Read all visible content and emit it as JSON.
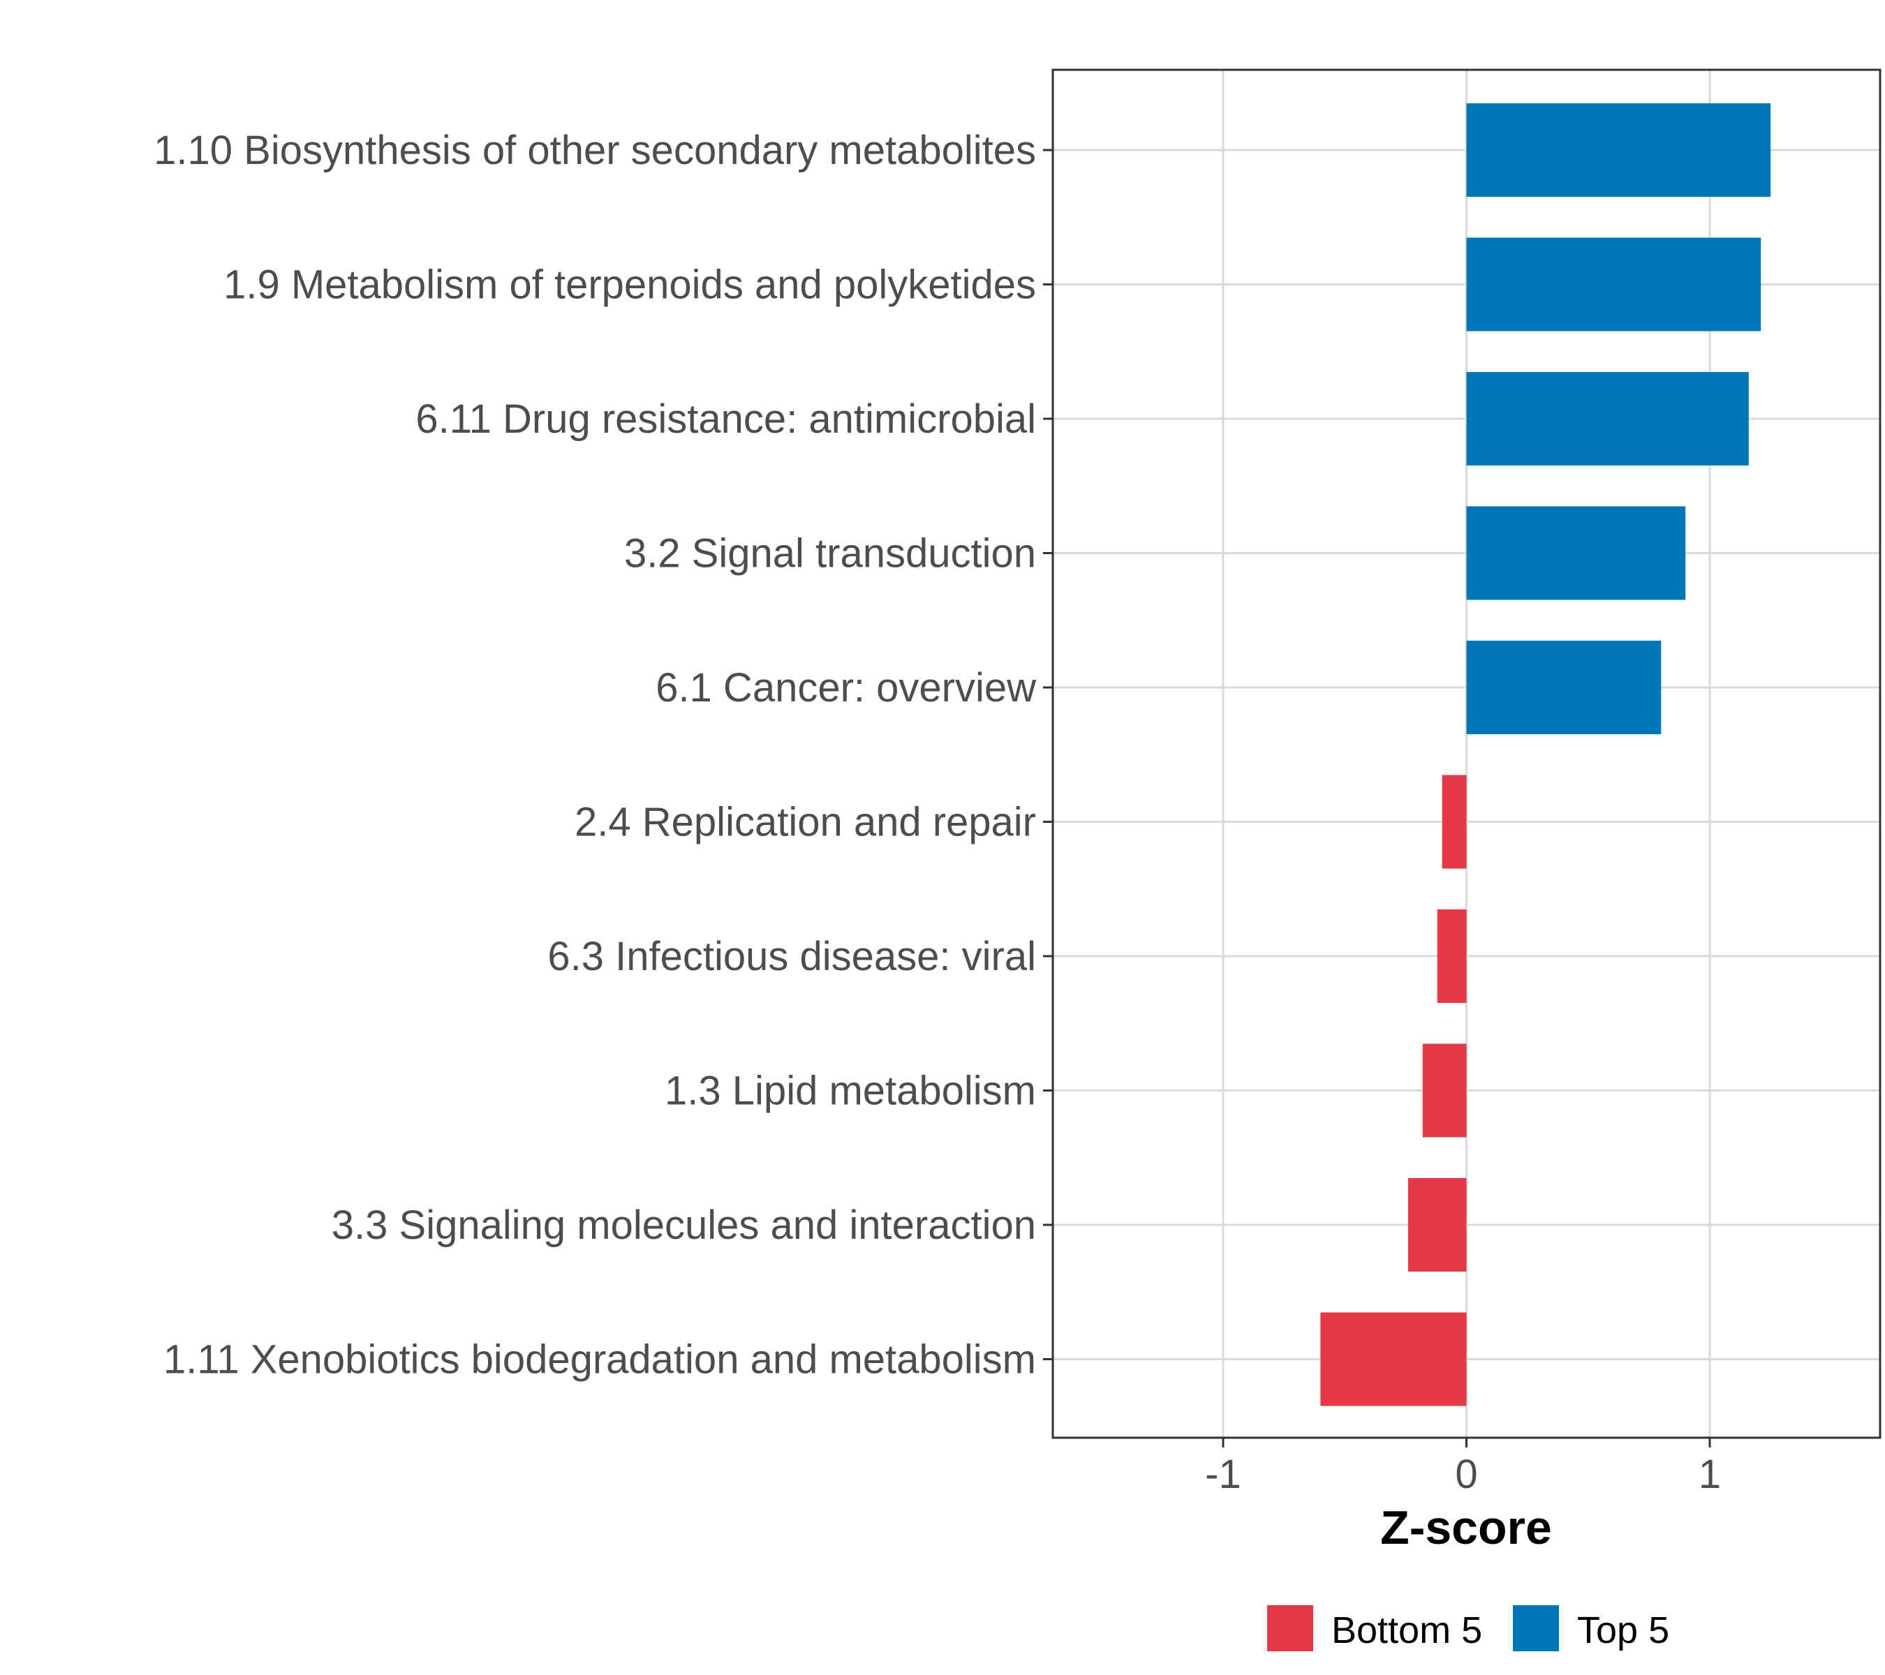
{
  "chart_data": {
    "type": "bar",
    "orientation": "horizontal",
    "title": "",
    "xlabel": "Z-score",
    "ylabel": "",
    "xlim": [
      -1.7,
      1.7
    ],
    "xticks": [
      -1,
      0,
      1
    ],
    "xtick_labels": [
      "-1",
      "0",
      "1"
    ],
    "grid": true,
    "categories": [
      "1.10 Biosynthesis of other secondary metabolites",
      "1.9 Metabolism of terpenoids and polyketides",
      "6.11 Drug resistance: antimicrobial",
      "3.2 Signal transduction",
      "6.1 Cancer: overview",
      "2.4 Replication and repair",
      "6.3 Infectious disease: viral",
      "1.3 Lipid metabolism",
      "3.3 Signaling molecules and interaction",
      "1.11 Xenobiotics biodegradation and metabolism"
    ],
    "values": [
      1.25,
      1.21,
      1.16,
      0.9,
      0.8,
      -0.1,
      -0.12,
      -0.18,
      -0.24,
      -0.6
    ],
    "groups": [
      "Top 5",
      "Top 5",
      "Top 5",
      "Top 5",
      "Top 5",
      "Bottom 5",
      "Bottom 5",
      "Bottom 5",
      "Bottom 5",
      "Bottom 5"
    ],
    "legend": {
      "position": "bottom",
      "entries": [
        {
          "label": "Bottom 5",
          "color": "#e63946"
        },
        {
          "label": "Top 5",
          "color": "#0077b6"
        }
      ]
    }
  }
}
